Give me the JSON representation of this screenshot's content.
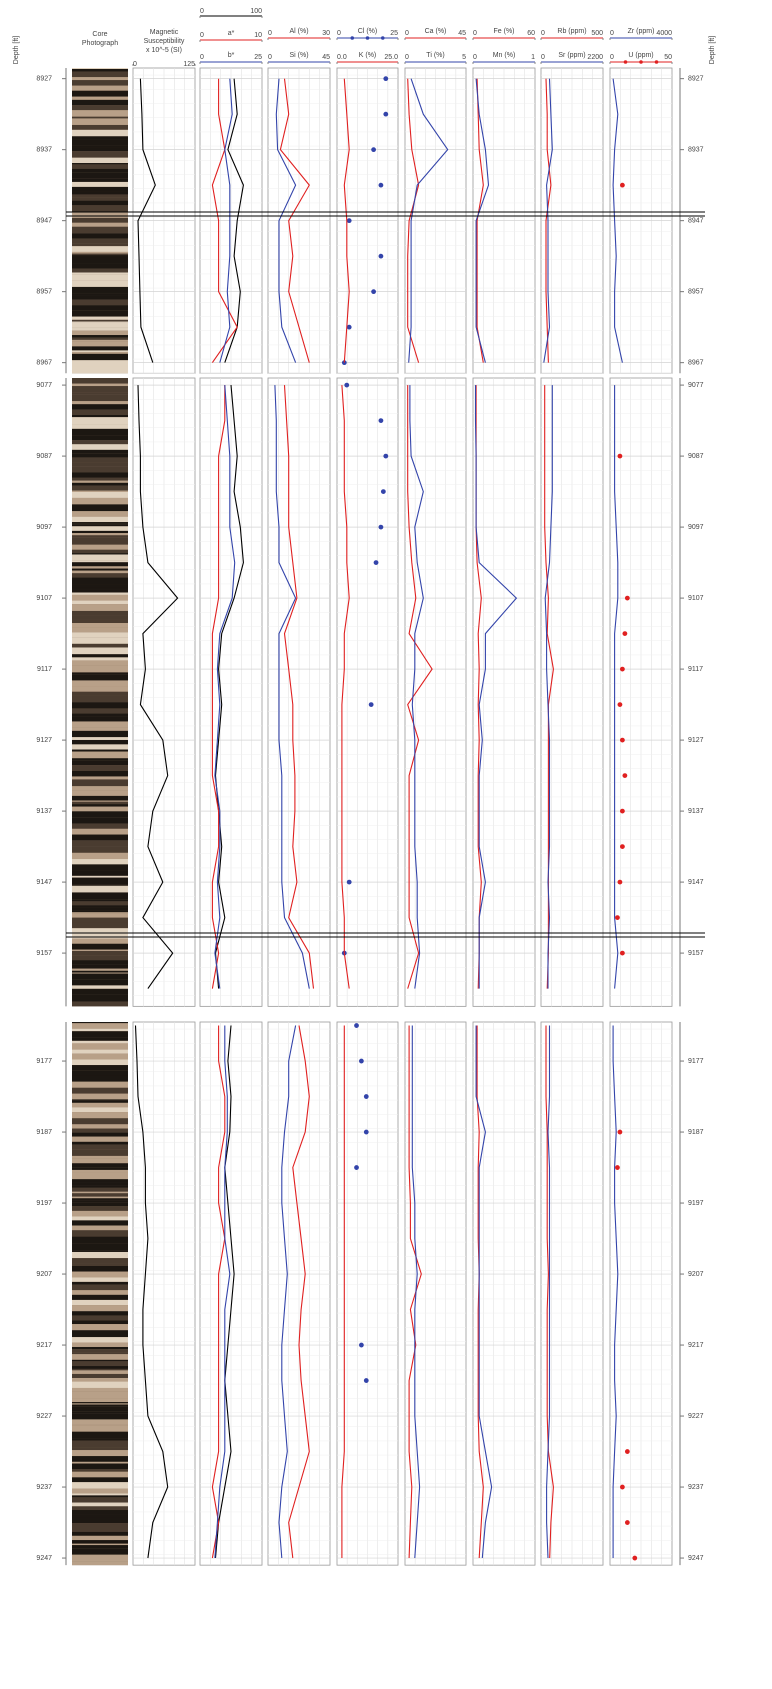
{
  "chart_data": {
    "type": "well-log",
    "depth_label": "Depth [ft]",
    "panels": [
      {
        "ylim": [
          8925.5,
          8968.5
        ],
        "yticks": [
          8927,
          8937,
          8947,
          8957,
          8967
        ]
      },
      {
        "ylim": [
          9076,
          9164.5
        ],
        "yticks": [
          9077,
          9087,
          9097,
          9107,
          9117,
          9127,
          9137,
          9147,
          9157
        ]
      },
      {
        "ylim": [
          9171.5,
          9248
        ],
        "yticks": [
          9177,
          9187,
          9197,
          9207,
          9217,
          9227,
          9237,
          9247
        ]
      }
    ],
    "grid": true,
    "depth": [
      8927,
      8932,
      8937,
      8942,
      8947,
      8952,
      8957,
      8962,
      8967,
      9077,
      9082,
      9087,
      9092,
      9097,
      9102,
      9107,
      9112,
      9117,
      9122,
      9127,
      9132,
      9137,
      9142,
      9147,
      9152,
      9157,
      9162,
      9172,
      9177,
      9182,
      9187,
      9192,
      9197,
      9202,
      9207,
      9212,
      9217,
      9222,
      9227,
      9232,
      9237,
      9242,
      9247
    ],
    "tracks": [
      {
        "title": [
          "Core",
          "Photograph"
        ],
        "kind": "core"
      },
      {
        "title": [
          "Magnetic",
          "Susceptibility",
          "x 10^-5 (SI)"
        ],
        "series": [
          {
            "color": "#000000",
            "style": "line",
            "xlim": [
              0,
              125
            ],
            "xticks": [
              0,
              125
            ],
            "values": [
              15,
              18,
              20,
              45,
              10,
              12,
              14,
              16,
              40,
              10,
              12,
              15,
              15,
              20,
              30,
              90,
              20,
              25,
              15,
              60,
              70,
              40,
              30,
              60,
              20,
              80,
              30,
              5,
              8,
              10,
              20,
              25,
              25,
              30,
              25,
              20,
              20,
              25,
              30,
              60,
              70,
              40,
              30
            ]
          }
        ]
      },
      {
        "series": [
          {
            "color": "#000000",
            "style": "line",
            "xlim": [
              0,
              100
            ],
            "xticks": [
              0,
              100
            ],
            "values": [
              55,
              60,
              45,
              70,
              60,
              55,
              65,
              60,
              40,
              50,
              55,
              60,
              55,
              65,
              70,
              55,
              35,
              30,
              35,
              30,
              25,
              30,
              35,
              30,
              40,
              25,
              30,
              50,
              45,
              50,
              48,
              40,
              45,
              50,
              55,
              50,
              45,
              40,
              45,
              50,
              40,
              30,
              25
            ]
          },
          {
            "name": "a*",
            "color": "#e02020",
            "style": "line",
            "xlim": [
              0,
              10
            ],
            "xticks": [
              0,
              10
            ],
            "values": [
              3,
              3,
              4,
              2,
              3,
              3,
              3,
              6,
              2,
              4,
              4,
              3,
              3,
              3,
              3,
              3,
              2,
              2,
              2,
              2,
              2,
              3,
              3,
              2,
              2,
              3,
              2,
              3,
              3,
              4,
              4,
              3,
              3,
              4,
              3,
              3,
              3,
              3,
              3,
              3,
              2,
              3,
              2
            ]
          },
          {
            "name": "b*",
            "color": "#3344aa",
            "style": "line",
            "xlim": [
              0,
              25
            ],
            "xticks": [
              0,
              25
            ],
            "values": [
              12,
              13,
              10,
              12,
              12,
              12,
              11,
              12,
              8,
              10,
              11,
              12,
              12,
              12,
              14,
              13,
              8,
              7,
              8,
              7,
              6,
              8,
              8,
              7,
              8,
              6,
              8,
              10,
              10,
              11,
              11,
              10,
              10,
              10,
              12,
              10,
              10,
              10,
              10,
              10,
              8,
              7,
              6
            ]
          }
        ]
      },
      {
        "series": [
          {
            "name": "Al (%)",
            "color": "#e02020",
            "style": "line",
            "xlim": [
              0,
              30
            ],
            "xticks": [
              0,
              30
            ],
            "values": [
              8,
              10,
              6,
              20,
              10,
              12,
              10,
              15,
              20,
              8,
              9,
              10,
              10,
              10,
              12,
              14,
              8,
              10,
              12,
              12,
              13,
              13,
              12,
              14,
              10,
              20,
              22,
              15,
              18,
              20,
              18,
              12,
              14,
              16,
              18,
              16,
              15,
              16,
              18,
              20,
              15,
              10,
              12
            ]
          },
          {
            "name": "Si (%)",
            "color": "#3344aa",
            "style": "line",
            "xlim": [
              0,
              45
            ],
            "xticks": [
              0,
              45
            ],
            "values": [
              8,
              6,
              7,
              20,
              8,
              8,
              8,
              10,
              20,
              5,
              6,
              6,
              6,
              8,
              8,
              20,
              8,
              8,
              8,
              8,
              10,
              10,
              10,
              10,
              12,
              25,
              30,
              20,
              15,
              15,
              12,
              10,
              10,
              12,
              14,
              12,
              10,
              10,
              12,
              14,
              10,
              8,
              10
            ]
          }
        ]
      },
      {
        "series": [
          {
            "name": "Cl (%)",
            "color": "#3344aa",
            "style": "markers",
            "xlim": [
              0,
              25
            ],
            "xticks": [
              0,
              25
            ],
            "values": [
              20,
              20,
              15,
              18,
              5,
              18,
              15,
              5,
              3,
              4,
              18,
              20,
              19,
              18,
              16,
              null,
              null,
              null,
              14,
              null,
              null,
              null,
              null,
              5,
              null,
              3,
              null,
              8,
              10,
              12,
              12,
              8,
              null,
              null,
              null,
              null,
              10,
              12,
              null,
              null,
              null,
              null,
              null
            ]
          },
          {
            "name": "K (%)",
            "color": "#e02020",
            "style": "line",
            "xlim": [
              0,
              25
            ],
            "xticks": [
              {
                "value": 0,
                "label": "0.0"
              },
              {
                "value": 25,
                "label": "25.0"
              }
            ],
            "values": [
              3,
              4,
              5,
              3,
              4,
              4,
              5,
              4,
              3,
              2,
              3,
              3,
              3,
              4,
              4,
              5,
              3,
              3,
              2,
              2,
              2,
              2,
              2,
              2,
              3,
              3,
              5,
              3,
              3,
              3,
              3,
              3,
              3,
              3,
              3,
              3,
              3,
              3,
              3,
              3,
              2,
              2,
              2
            ]
          }
        ]
      },
      {
        "series": [
          {
            "name": "Ca (%)",
            "color": "#e02020",
            "style": "line",
            "xlim": [
              0,
              45
            ],
            "xticks": [
              0,
              45
            ],
            "values": [
              2,
              3,
              5,
              10,
              3,
              2,
              2,
              2,
              10,
              2,
              2,
              2,
              2,
              3,
              5,
              8,
              3,
              20,
              2,
              10,
              3,
              3,
              3,
              3,
              3,
              10,
              2,
              3,
              3,
              3,
              3,
              3,
              4,
              4,
              12,
              4,
              8,
              3,
              3,
              3,
              5,
              4,
              3
            ]
          },
          {
            "name": "Ti (%)",
            "color": "#3344aa",
            "style": "line",
            "xlim": [
              0,
              5
            ],
            "xticks": [
              0,
              5
            ],
            "values": [
              0.5,
              1.5,
              3.5,
              1,
              0.5,
              0.5,
              0.5,
              0.5,
              0.3,
              0.4,
              0.4,
              0.5,
              1.5,
              0.8,
              1,
              1.5,
              0.8,
              0.8,
              0.6,
              0.8,
              0.8,
              0.8,
              0.8,
              1,
              1,
              1.2,
              0.8,
              0.6,
              0.6,
              0.6,
              0.6,
              0.6,
              0.8,
              0.8,
              1,
              0.8,
              0.8,
              0.8,
              0.8,
              1,
              1.2,
              1,
              0.8
            ]
          }
        ]
      },
      {
        "series": [
          {
            "name": "Fe (%)",
            "color": "#e02020",
            "style": "line",
            "xlim": [
              0,
              60
            ],
            "xticks": [
              0,
              60
            ],
            "values": [
              4,
              5,
              6,
              10,
              4,
              4,
              4,
              4,
              10,
              3,
              3,
              3,
              3,
              3,
              4,
              8,
              5,
              6,
              5,
              6,
              5,
              5,
              5,
              8,
              6,
              6,
              5,
              4,
              4,
              4,
              6,
              5,
              5,
              5,
              6,
              5,
              5,
              5,
              5,
              6,
              10,
              8,
              6
            ]
          },
          {
            "name": "Mn (%)",
            "color": "#3344aa",
            "style": "line",
            "xlim": [
              0,
              1
            ],
            "xticks": [
              0,
              1
            ],
            "values": [
              0.05,
              0.1,
              0.2,
              0.25,
              0.05,
              0.05,
              0.05,
              0.05,
              0.2,
              0.04,
              0.04,
              0.05,
              0.05,
              0.05,
              0.1,
              0.7,
              0.2,
              0.2,
              0.1,
              0.15,
              0.1,
              0.1,
              0.1,
              0.2,
              0.1,
              0.1,
              0.1,
              0.05,
              0.05,
              0.05,
              0.2,
              0.1,
              0.1,
              0.1,
              0.1,
              0.1,
              0.1,
              0.1,
              0.1,
              0.2,
              0.3,
              0.2,
              0.15
            ]
          }
        ]
      },
      {
        "series": [
          {
            "name": "Rb (ppm)",
            "color": "#e02020",
            "style": "line",
            "xlim": [
              0,
              500
            ],
            "xticks": [
              0,
              500
            ],
            "values": [
              40,
              50,
              50,
              80,
              40,
              40,
              40,
              50,
              60,
              30,
              30,
              30,
              30,
              30,
              40,
              60,
              50,
              100,
              60,
              60,
              60,
              60,
              60,
              60,
              60,
              60,
              50,
              40,
              40,
              40,
              50,
              50,
              50,
              50,
              60,
              50,
              50,
              50,
              50,
              60,
              100,
              80,
              70
            ]
          },
          {
            "name": "Sr (ppm)",
            "color": "#3344aa",
            "style": "line",
            "xlim": [
              0,
              2200
            ],
            "xticks": [
              0,
              2200
            ],
            "values": [
              300,
              350,
              400,
              200,
              250,
              250,
              250,
              300,
              100,
              400,
              400,
              400,
              400,
              350,
              300,
              150,
              200,
              200,
              250,
              300,
              300,
              300,
              300,
              250,
              300,
              250,
              250,
              300,
              300,
              300,
              250,
              300,
              300,
              300,
              300,
              300,
              300,
              300,
              300,
              250,
              200,
              200,
              250
            ]
          }
        ]
      },
      {
        "series": [
          {
            "name": "Zr (ppm)",
            "color": "#3344aa",
            "style": "line",
            "xlim": [
              0,
              4000
            ],
            "xticks": [
              0,
              4000
            ],
            "values": [
              200,
              500,
              300,
              200,
              300,
              400,
              300,
              300,
              800,
              300,
              300,
              300,
              300,
              400,
              500,
              500,
              300,
              300,
              300,
              300,
              300,
              300,
              300,
              300,
              300,
              500,
              300,
              200,
              200,
              300,
              400,
              300,
              300,
              400,
              500,
              400,
              300,
              300,
              400,
              300,
              200,
              200,
              200
            ]
          },
          {
            "name": "U (ppm)",
            "color": "#e02020",
            "style": "markers",
            "xlim": [
              0,
              50
            ],
            "xticks": [
              0,
              50
            ],
            "values": [
              null,
              null,
              null,
              10,
              null,
              null,
              null,
              null,
              null,
              null,
              null,
              8,
              null,
              null,
              null,
              14,
              12,
              10,
              8,
              10,
              12,
              10,
              10,
              8,
              6,
              10,
              null,
              null,
              null,
              null,
              8,
              6,
              null,
              null,
              null,
              null,
              null,
              null,
              null,
              14,
              10,
              14,
              20
            ]
          }
        ]
      }
    ]
  }
}
